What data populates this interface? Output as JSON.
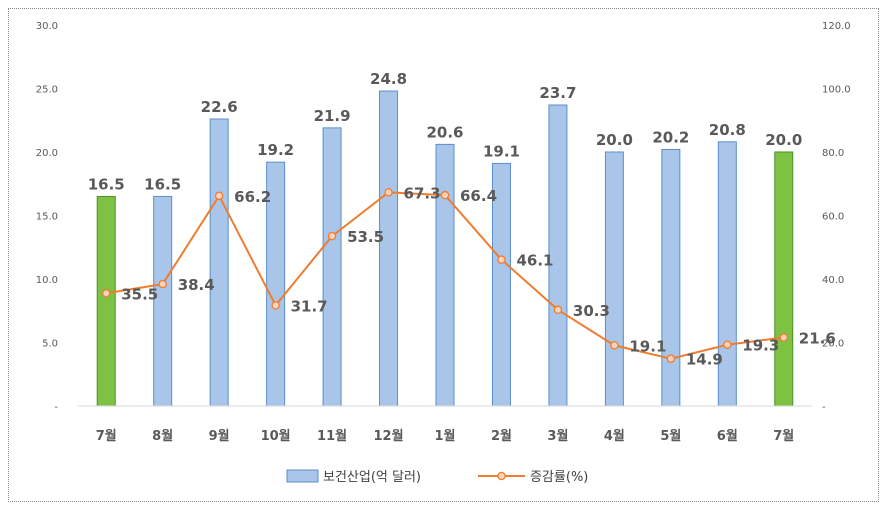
{
  "chart_data": {
    "type": "bar",
    "categories": [
      "7월",
      "8월",
      "9월",
      "10월",
      "11월",
      "12월",
      "1월",
      "2월",
      "3월",
      "4월",
      "5월",
      "6월",
      "7월"
    ],
    "series": [
      {
        "name": "보건산업(억 달러)",
        "type": "bar",
        "axis": "left",
        "values": [
          16.5,
          16.5,
          22.6,
          19.2,
          21.9,
          24.8,
          20.6,
          19.1,
          23.7,
          20.0,
          20.2,
          20.8,
          20.0
        ],
        "labels": [
          "16.5",
          "16.5",
          "22.6",
          "19.2",
          "21.9",
          "24.8",
          "20.6",
          "19.1",
          "23.7",
          "20.0",
          "20.2",
          "20.8",
          "20.0"
        ],
        "highlight_indices": [
          0,
          12
        ]
      },
      {
        "name": "증감률(%)",
        "type": "line",
        "axis": "right",
        "values": [
          35.5,
          38.4,
          66.2,
          31.7,
          53.5,
          67.3,
          66.4,
          46.1,
          30.3,
          19.1,
          14.9,
          19.3,
          21.6
        ],
        "labels": [
          "35.5",
          "38.4",
          "66.2",
          "31.7",
          "53.5",
          "67.3",
          "66.4",
          "46.1",
          "30.3",
          "19.1",
          "14.9",
          "19.3",
          "21.6"
        ]
      }
    ],
    "y_left": {
      "ylim": [
        0,
        30
      ],
      "ticks": [
        "-",
        "5.0",
        "10.0",
        "15.0",
        "20.0",
        "25.0",
        "30.0"
      ]
    },
    "y_right": {
      "ylim": [
        0,
        120
      ],
      "ticks": [
        "-",
        "20.0",
        "40.0",
        "60.0",
        "80.0",
        "100.0",
        "120.0"
      ]
    },
    "legend": {
      "position": "bottom"
    },
    "grid": false,
    "colors": {
      "bar": "#a9c6ea",
      "bar_border": "#5b8ec9",
      "bar_highlight": "#7dc242",
      "bar_highlight_border": "#4e8f2a",
      "line": "#ed7d31",
      "marker_fill": "#fbd3bd"
    }
  }
}
